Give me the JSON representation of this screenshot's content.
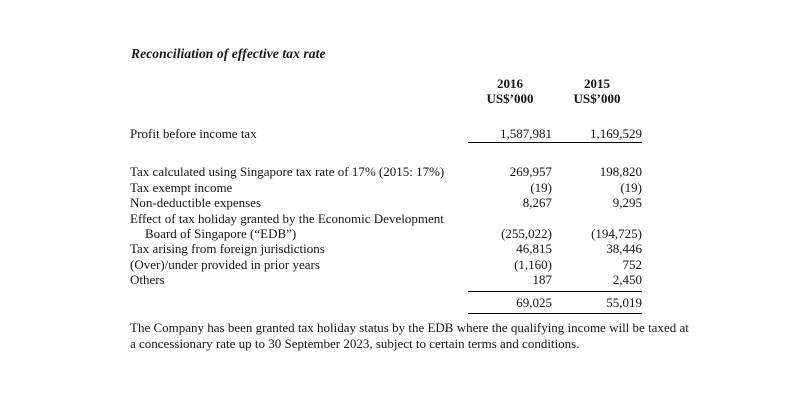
{
  "doc": {
    "title": "Reconciliation of effective tax rate",
    "header": {
      "col2016": {
        "year": "2016",
        "unit": "US$’000"
      },
      "col2015": {
        "year": "2015",
        "unit": "US$’000"
      }
    },
    "table": {
      "rows": [
        {
          "label": "Profit before income tax",
          "v2016": "1,587,981",
          "v2015": "1,169,529"
        },
        {
          "label": "Tax calculated using Singapore tax rate of 17% (2015: 17%)",
          "v2016": "269,957",
          "v2015": "198,820"
        },
        {
          "label": "Tax exempt income",
          "v2016": "(19)",
          "v2015": "(19)"
        },
        {
          "label": "Non-deductible expenses",
          "v2016": "8,267",
          "v2015": "9,295"
        },
        {
          "label": "Effect of tax holiday granted by the Economic Development",
          "v2016": "",
          "v2015": ""
        },
        {
          "label": "Board of Singapore (“EDB”)",
          "v2016": "(255,022)",
          "v2015": "(194,725)"
        },
        {
          "label": "Tax arising from foreign jurisdictions",
          "v2016": "46,815",
          "v2015": "38,446"
        },
        {
          "label": "(Over)/under provided in prior years",
          "v2016": "(1,160)",
          "v2015": "752"
        },
        {
          "label": "Others",
          "v2016": "187",
          "v2015": "2,450"
        },
        {
          "label": "",
          "v2016": "69,025",
          "v2015": "55,019"
        }
      ]
    },
    "footnote": "The Company has been granted tax holiday status by the EDB where the qualifying income will be taxed at a concessionary rate up to 30 September 2023, subject to certain terms and conditions."
  }
}
